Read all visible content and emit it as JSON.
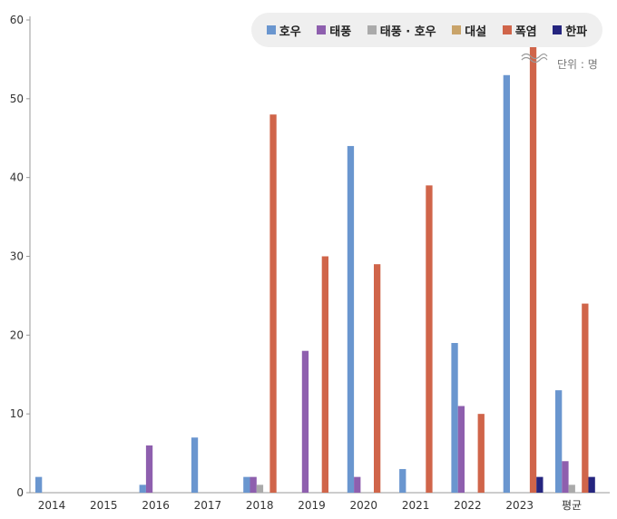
{
  "chart_data": {
    "type": "bar",
    "title": "",
    "xlabel": "",
    "ylabel": "",
    "unit_label": "단위 : 명",
    "ylim": [
      0,
      60
    ],
    "yticks": [
      0,
      10,
      20,
      30,
      40,
      50,
      60
    ],
    "categories": [
      "2014",
      "2015",
      "2016",
      "2017",
      "2018",
      "2019",
      "2020",
      "2021",
      "2022",
      "2023",
      "평균"
    ],
    "legend_position": "top-right",
    "series": [
      {
        "name": "호우",
        "color": "#6a96cf",
        "values": [
          2,
          0,
          1,
          7,
          2,
          0,
          44,
          3,
          19,
          53,
          13
        ]
      },
      {
        "name": "태풍",
        "color": "#8e5fae",
        "values": [
          0,
          0,
          6,
          0,
          2,
          18,
          2,
          0,
          11,
          0,
          4
        ]
      },
      {
        "name": "태풍 · 호우",
        "color": "#aaaaaa",
        "values": [
          0,
          0,
          0,
          0,
          1,
          0,
          0,
          0,
          0,
          0,
          1
        ]
      },
      {
        "name": "대설",
        "color": "#c9a46a",
        "values": [
          0,
          0,
          0,
          0,
          0,
          0,
          0,
          0,
          0,
          0,
          0
        ]
      },
      {
        "name": "폭염",
        "color": "#d0654a",
        "values": [
          0,
          0,
          0,
          0,
          48,
          30,
          29,
          39,
          10,
          57,
          24
        ]
      },
      {
        "name": "한파",
        "color": "#25257f",
        "values": [
          0,
          0,
          0,
          0,
          0,
          0,
          0,
          0,
          0,
          2,
          2
        ]
      }
    ],
    "axis_break": {
      "category": "2023",
      "series": "폭염"
    }
  }
}
